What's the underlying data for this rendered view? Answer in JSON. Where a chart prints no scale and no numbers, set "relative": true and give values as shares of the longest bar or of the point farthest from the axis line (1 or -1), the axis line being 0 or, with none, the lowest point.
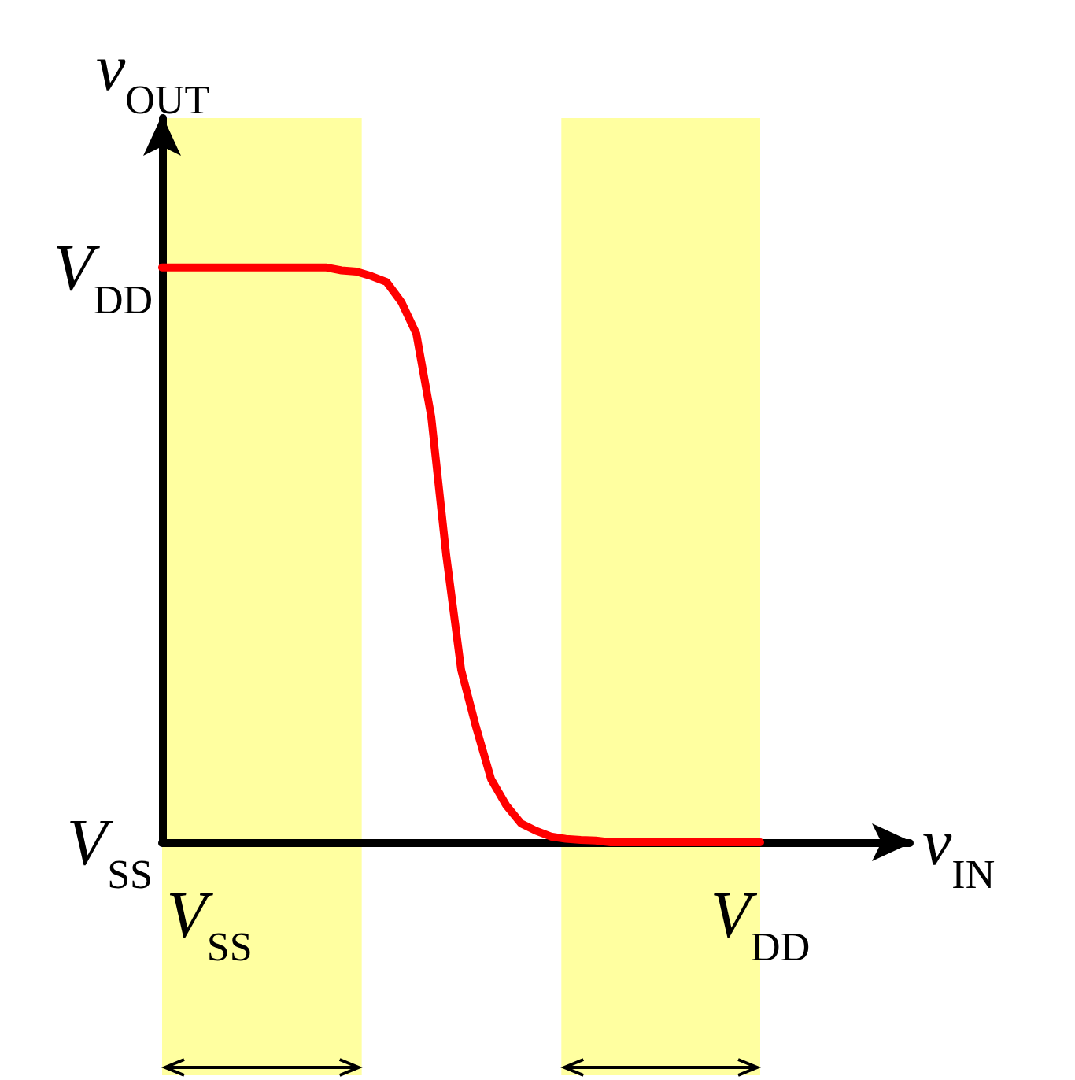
{
  "chart_data": {
    "type": "line",
    "xlabel": "v$_{IN}$",
    "ylabel": "v$_{OUT}$",
    "relative": true,
    "categories": [
      null,
      null,
      null,
      null,
      null,
      null,
      null,
      null,
      null,
      null,
      null,
      null,
      null,
      null,
      null,
      null,
      null,
      null,
      null,
      null,
      null,
      null,
      null,
      null,
      null,
      null,
      null,
      null,
      null,
      null,
      null,
      null,
      null,
      null,
      null,
      null,
      null,
      null,
      null,
      null,
      null,
      null,
      null,
      null,
      null,
      null,
      null,
      null,
      null,
      null,
      null
    ],
    "series": [
      {
        "color": "#ff0000",
        "values": [
          1,
          1,
          1,
          1,
          1,
          1,
          1,
          1,
          1,
          1,
          1,
          1,
          0.995,
          0.993,
          0.985,
          0.975,
          0.94,
          0.885,
          0.74,
          0.5,
          0.3,
          0.2,
          0.11,
          0.065,
          0.033,
          0.02,
          0.01,
          0.006,
          0.004,
          0.003,
          0,
          0,
          0,
          0,
          0,
          0,
          0,
          0,
          0,
          0,
          0,
          null,
          null,
          null,
          null,
          null,
          null,
          null,
          null,
          null,
          null
        ]
      }
    ],
    "annotations": [
      "V$_{DD}$",
      "V$_{SS}$",
      "V$_{SS}$",
      "V$_{DD}$"
    ],
    "marker": "none",
    "line_style": "solid"
  }
}
